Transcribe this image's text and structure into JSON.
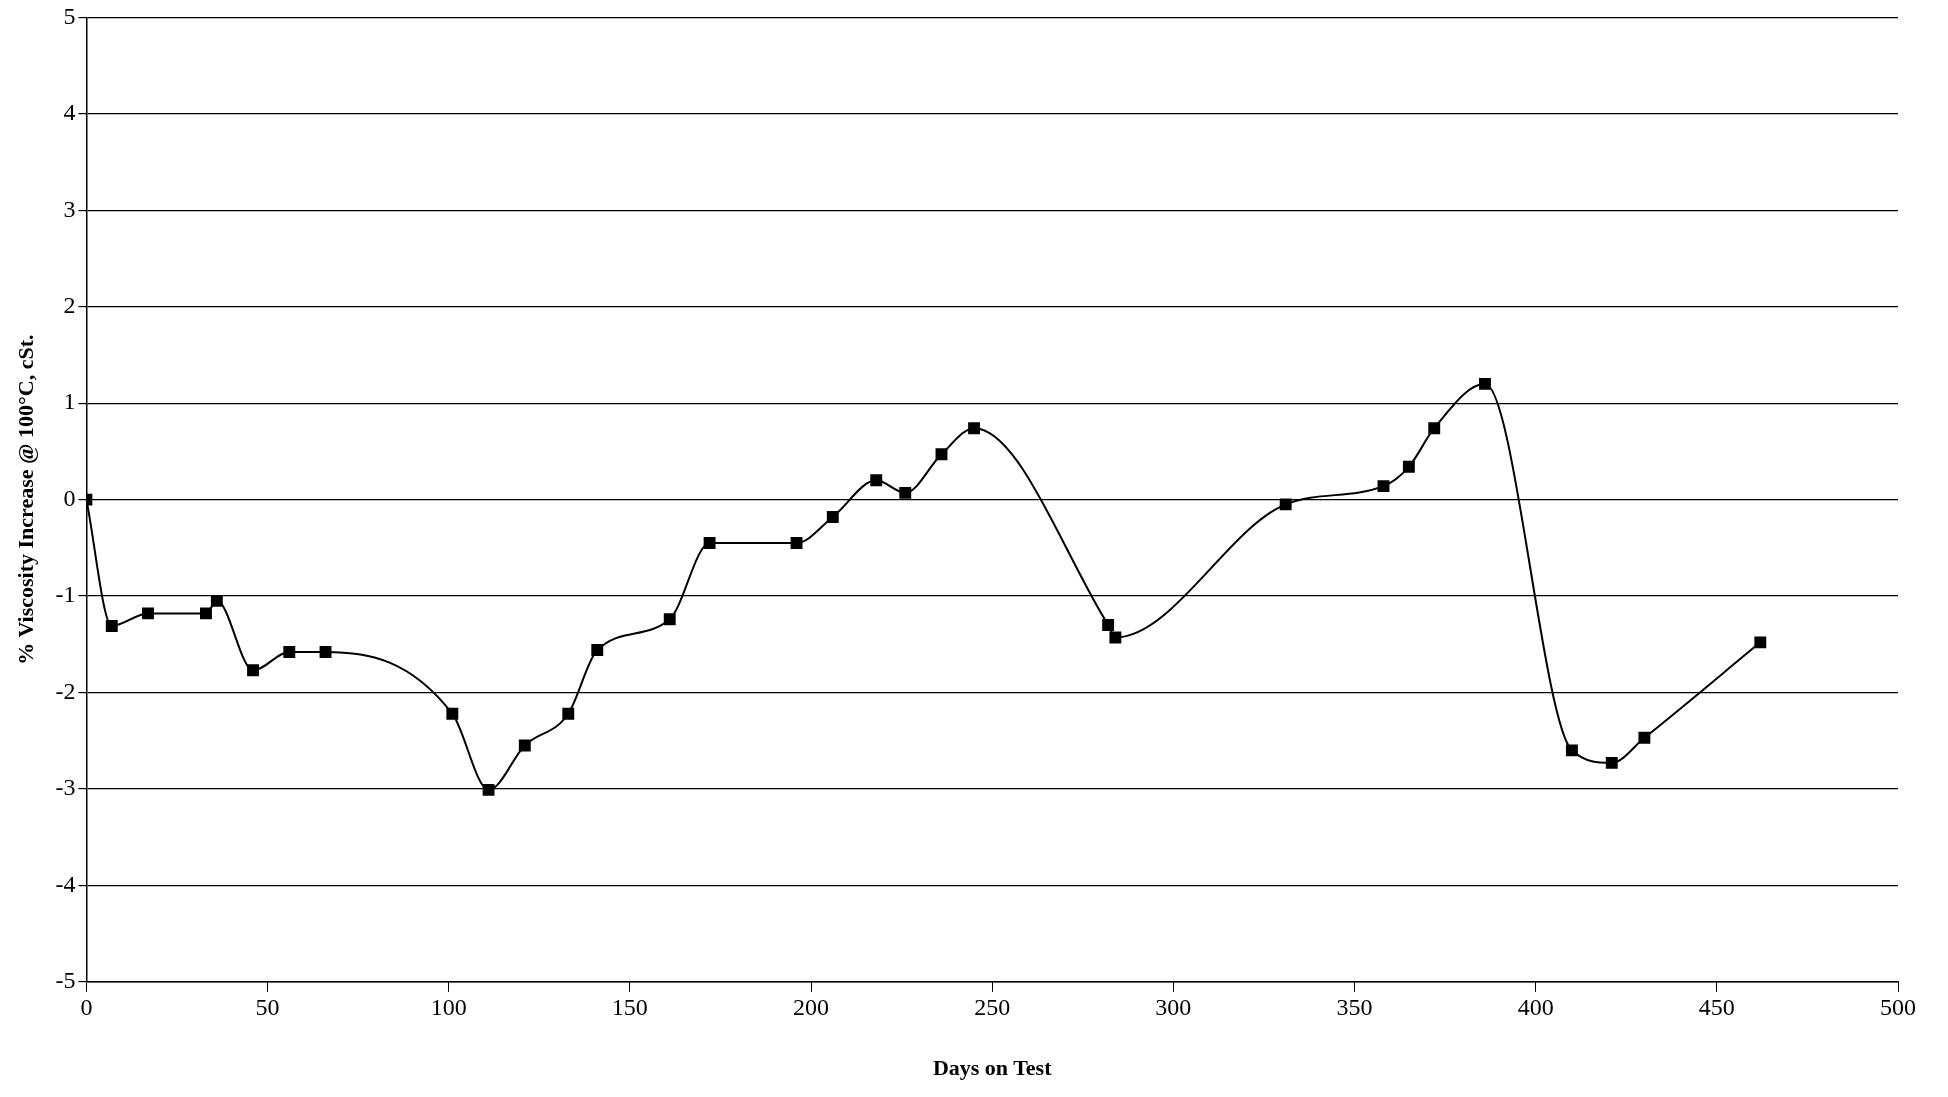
{
  "chart_data": {
    "type": "line",
    "xlabel": "Days on Test",
    "ylabel": "% Viscosity Increase @ 100°C, cSt.",
    "x": [
      0,
      7,
      17,
      33,
      36,
      46,
      56,
      66,
      101,
      111,
      121,
      133,
      141,
      161,
      172,
      196,
      206,
      218,
      226,
      236,
      245,
      282,
      284,
      331,
      358,
      365,
      372,
      386,
      410,
      421,
      430,
      462
    ],
    "series": [
      {
        "color": "#000000",
        "values": [
          0,
          -1.31,
          -1.18,
          -1.18,
          -1.05,
          -1.77,
          -1.58,
          -1.58,
          -2.22,
          -3.01,
          -2.55,
          -2.22,
          -1.56,
          -1.24,
          -0.45,
          -0.45,
          -0.18,
          0.2,
          0.07,
          0.47,
          0.74,
          -1.3,
          -1.43,
          -0.05,
          0.14,
          0.34,
          0.74,
          1.2,
          -2.6,
          -2.73,
          -2.47,
          -1.48
        ]
      }
    ],
    "xlim": [
      0,
      500
    ],
    "xticks": [
      0,
      50,
      100,
      150,
      200,
      250,
      300,
      350,
      400,
      450,
      500
    ],
    "ylim": [
      -5,
      5
    ],
    "yticks": [
      -5,
      -4,
      -3,
      -2,
      -1,
      0,
      1,
      2,
      3,
      4,
      5
    ],
    "grid": "y",
    "legend": false,
    "marker": "square",
    "line_style": "solid"
  }
}
